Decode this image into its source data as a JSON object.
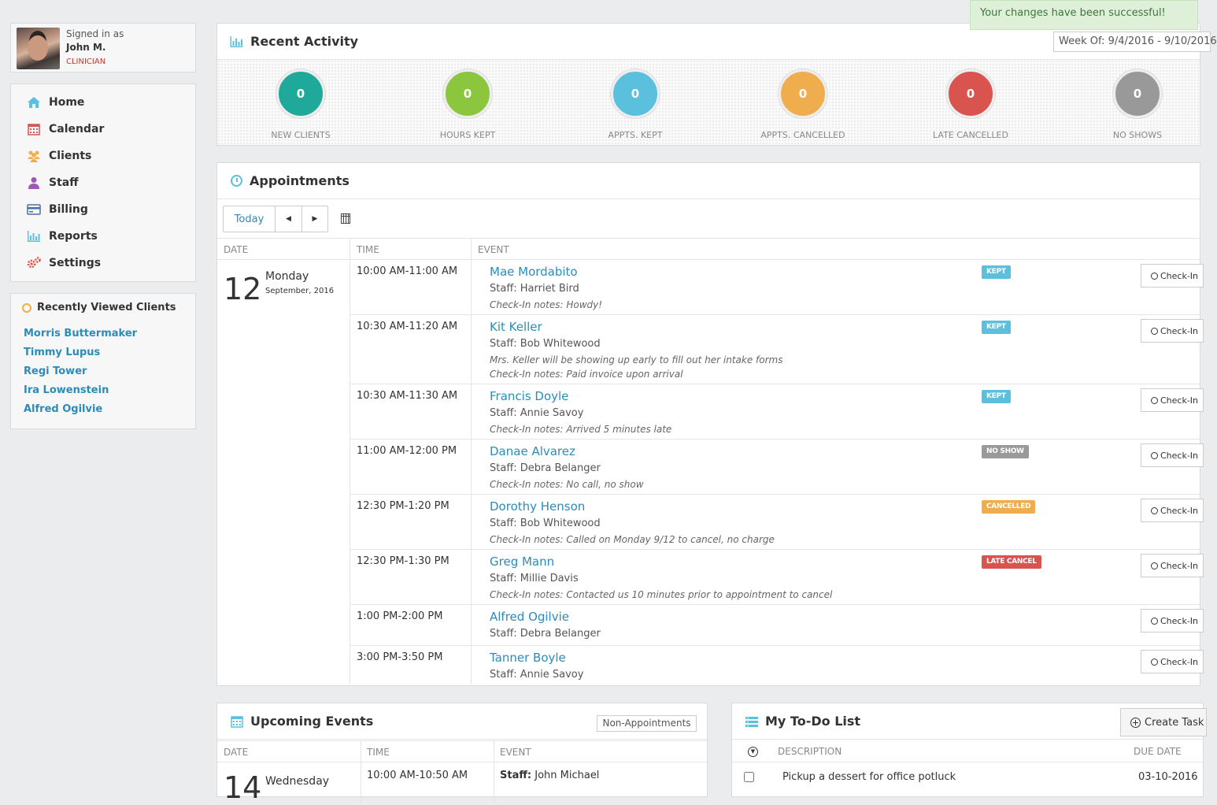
{
  "user": {
    "signed_in_label": "Signed in as",
    "name": "John M.",
    "role": "CLINICIAN"
  },
  "nav": {
    "items": [
      {
        "label": "Home",
        "icon": "home-icon",
        "color": "#5bc0de"
      },
      {
        "label": "Calendar",
        "icon": "calendar-icon",
        "color": "#d9534f"
      },
      {
        "label": "Clients",
        "icon": "clients-icon",
        "color": "#f0ad4e"
      },
      {
        "label": "Staff",
        "icon": "staff-icon",
        "color": "#9b59b6"
      },
      {
        "label": "Billing",
        "icon": "billing-icon",
        "color": "#4a6fa5"
      },
      {
        "label": "Reports",
        "icon": "reports-icon",
        "color": "#5bc0de"
      },
      {
        "label": "Settings",
        "icon": "settings-icon",
        "color": "#e74c3c"
      }
    ]
  },
  "recent_clients": {
    "title": "Recently Viewed Clients",
    "items": [
      "Morris Buttermaker",
      "Timmy Lupus",
      "Regi Tower",
      "Ira Lowenstein",
      "Alfred Ogilvie"
    ]
  },
  "toast": {
    "message": "Your changes have been successful!"
  },
  "activity": {
    "title": "Recent Activity",
    "week": "Week Of: 9/4/2016 - 9/10/2016",
    "stats": [
      {
        "value": "0",
        "label": "NEW CLIENTS",
        "color": "#1fa99b"
      },
      {
        "value": "0",
        "label": "HOURS KEPT",
        "color": "#8cc63f"
      },
      {
        "value": "0",
        "label": "APPTS. KEPT",
        "color": "#5bc0de"
      },
      {
        "value": "0",
        "label": "APPTS. CANCELLED",
        "color": "#f0ad4e"
      },
      {
        "value": "0",
        "label": "LATE CANCELLED",
        "color": "#d9534f"
      },
      {
        "value": "0",
        "label": "NO SHOWS",
        "color": "#999999"
      }
    ]
  },
  "appointments": {
    "title": "Appointments",
    "today_label": "Today",
    "prev_icon": "caret-left-icon",
    "next_icon": "caret-right-icon",
    "columns": {
      "date": "DATE",
      "time": "TIME",
      "event": "EVENT"
    },
    "date": {
      "day_num": "12",
      "weekday": "Monday",
      "month_year": "September, 2016"
    },
    "checkin_label": "Check-In",
    "rows": [
      {
        "time": "10:00 AM-11:00 AM",
        "name": "Mae Mordabito",
        "staff": "Staff: Harriet Bird",
        "notes": [
          "Check-In notes: Howdy!"
        ],
        "badge": "KEPT",
        "badge_color": "#5bc0de"
      },
      {
        "time": "10:30 AM-11:20 AM",
        "name": "Kit Keller",
        "staff": "Staff: Bob Whitewood",
        "notes": [
          "Mrs. Keller will be showing up early to fill out her intake forms",
          "Check-In notes: Paid invoice upon arrival"
        ],
        "badge": "KEPT",
        "badge_color": "#5bc0de"
      },
      {
        "time": "10:30 AM-11:30 AM",
        "name": "Francis Doyle",
        "staff": "Staff: Annie Savoy",
        "notes": [
          "Check-In notes: Arrived 5 minutes late"
        ],
        "badge": "KEPT",
        "badge_color": "#5bc0de"
      },
      {
        "time": "11:00 AM-12:00 PM",
        "name": "Danae Alvarez",
        "staff": "Staff: Debra Belanger",
        "notes": [
          "Check-In notes: No call, no show"
        ],
        "badge": "NO SHOW",
        "badge_color": "#999999"
      },
      {
        "time": "12:30 PM-1:20 PM",
        "name": "Dorothy Henson",
        "staff": "Staff: Bob Whitewood",
        "notes": [
          "Check-In notes: Called on Monday 9/12 to cancel, no charge"
        ],
        "badge": "CANCELLED",
        "badge_color": "#f0ad4e"
      },
      {
        "time": "12:30 PM-1:30 PM",
        "name": "Greg Mann",
        "staff": "Staff: Millie Davis",
        "notes": [
          "Check-In notes: Contacted us 10 minutes prior to appointment to cancel"
        ],
        "badge": "LATE CANCEL",
        "badge_color": "#d9534f"
      },
      {
        "time": "1:00 PM-2:00 PM",
        "name": "Alfred Ogilvie",
        "staff": "Staff: Debra Belanger",
        "notes": [],
        "badge": "",
        "badge_color": ""
      },
      {
        "time": "3:00 PM-3:50 PM",
        "name": "Tanner Boyle",
        "staff": "Staff: Annie Savoy",
        "notes": [],
        "badge": "",
        "badge_color": ""
      }
    ]
  },
  "upcoming": {
    "title": "Upcoming Events",
    "filter_label": "Non-Appointments",
    "columns": {
      "date": "DATE",
      "time": "TIME",
      "event": "EVENT"
    },
    "date": {
      "day_num": "14",
      "weekday": "Wednesday"
    },
    "first_row": {
      "time": "10:00 AM-10:50 AM",
      "staff_label": "Staff:",
      "staff_name": "John Michael"
    }
  },
  "todo": {
    "title": "My To-Do List",
    "create_label": "Create Task",
    "columns": {
      "description": "DESCRIPTION",
      "due": "DUE DATE"
    },
    "first_row": {
      "description": "Pickup a dessert for office potluck",
      "due": "03-10-2016"
    }
  }
}
